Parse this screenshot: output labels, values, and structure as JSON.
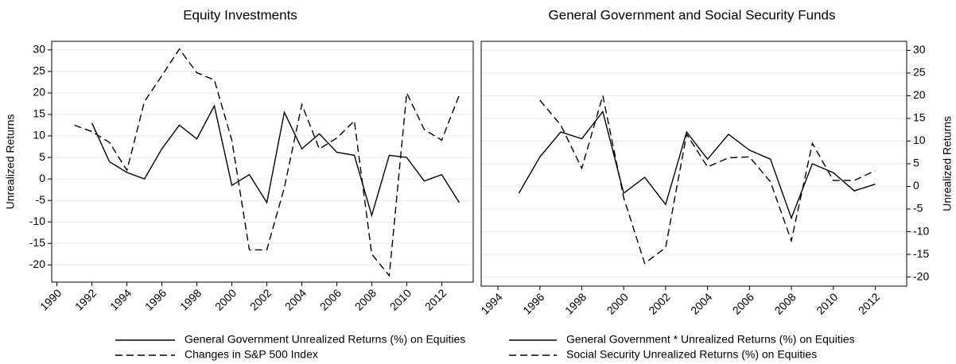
{
  "chart_data": [
    {
      "type": "line",
      "title": "Equity Investments",
      "ylabel": "Unrealized Returns",
      "y_axis_position": "left",
      "grid": true,
      "x": [
        1991,
        1992,
        1993,
        1994,
        1995,
        1996,
        1997,
        1998,
        1999,
        2000,
        2001,
        2002,
        2003,
        2004,
        2005,
        2006,
        2007,
        2008,
        2009,
        2010,
        2011,
        2012,
        2013
      ],
      "xlim": [
        1989.7,
        2013.8
      ],
      "xticks": [
        1990,
        1992,
        1994,
        1996,
        1998,
        2000,
        2002,
        2004,
        2006,
        2008,
        2010,
        2012
      ],
      "ylim": [
        -24,
        32
      ],
      "yticks": [
        -20,
        -15,
        -10,
        -5,
        0,
        5,
        10,
        15,
        20,
        25,
        30
      ],
      "series": [
        {
          "name": "General Government Unrealized Returns (%) on Equities",
          "color": "#000000",
          "dash": "solid",
          "values": [
            null,
            13,
            4,
            1.5,
            0,
            7,
            12.5,
            9.3,
            17,
            -1.5,
            1,
            -5.5,
            15.5,
            7,
            10.5,
            6.2,
            5.5,
            -8.5,
            5.5,
            5,
            -0.5,
            1,
            -5.5
          ]
        },
        {
          "name": "Changes in S&P 500 Index",
          "color": "#000000",
          "dash": "dashed",
          "values": [
            12.5,
            11,
            8.5,
            2,
            18,
            24,
            30.2,
            24.7,
            23,
            9,
            -16.5,
            -16.5,
            -2,
            17.3,
            7,
            9.5,
            13.5,
            -17.5,
            -22.5,
            20,
            11.5,
            9,
            19.5
          ]
        }
      ]
    },
    {
      "type": "line",
      "title": "General Government and Social Security Funds",
      "ylabel": "Unrealized Returns",
      "y_axis_position": "right",
      "grid": true,
      "x": [
        1995,
        1996,
        1997,
        1998,
        1999,
        2000,
        2001,
        2002,
        2003,
        2004,
        2005,
        2006,
        2007,
        2008,
        2009,
        2010,
        2011,
        2012
      ],
      "xlim": [
        1993.2,
        2013.5
      ],
      "xticks": [
        1994,
        1996,
        1998,
        2000,
        2002,
        2004,
        2006,
        2008,
        2010,
        2012
      ],
      "ylim": [
        -22,
        32
      ],
      "yticks": [
        -20,
        -15,
        -10,
        -5,
        0,
        5,
        10,
        15,
        20,
        25,
        30
      ],
      "series": [
        {
          "name": "General Government * Unrealized Returns (%) on Equities",
          "color": "#000000",
          "dash": "solid",
          "values": [
            -1.5,
            6.5,
            12,
            10.5,
            16.5,
            -1.5,
            2,
            -4,
            12,
            6,
            11.5,
            8,
            6,
            -7,
            5,
            3,
            -1,
            0.5
          ]
        },
        {
          "name": "Social Security Unrealized Returns (%) on Equities",
          "color": "#000000",
          "dash": "dashed",
          "values": [
            null,
            19,
            13.5,
            4,
            20,
            -2.5,
            -17,
            -13.5,
            11.5,
            4.3,
            6.3,
            6.5,
            1,
            -12,
            9.5,
            1.3,
            1.3,
            3.5
          ]
        }
      ]
    }
  ]
}
